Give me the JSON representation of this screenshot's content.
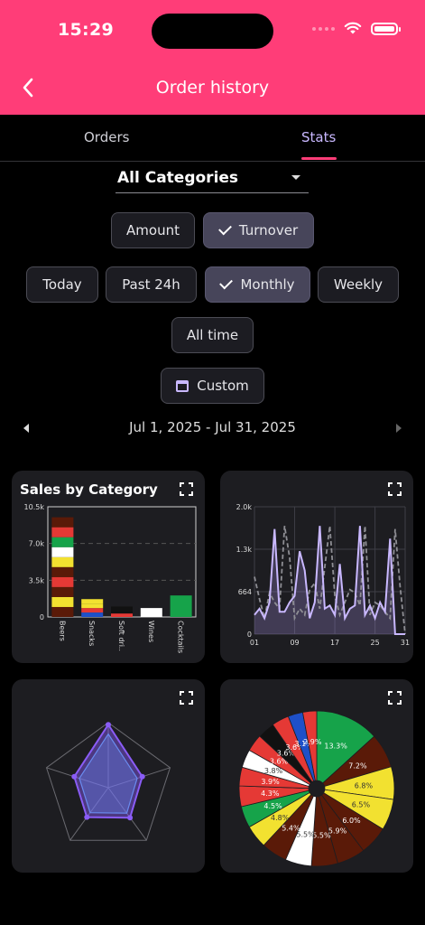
{
  "status_bar": {
    "time": "15:29"
  },
  "header": {
    "title": "Order history",
    "back_icon": "chevron-left-icon"
  },
  "tabs": [
    {
      "label": "Orders",
      "active": false
    },
    {
      "label": "Stats",
      "active": true
    }
  ],
  "category_dropdown": {
    "selected": "All Categories"
  },
  "metric_toggle": [
    {
      "label": "Amount",
      "selected": false
    },
    {
      "label": "Turnover",
      "selected": true
    }
  ],
  "period_toggle": [
    {
      "label": "Today",
      "selected": false
    },
    {
      "label": "Past 24h",
      "selected": false
    },
    {
      "label": "Monthly",
      "selected": true
    },
    {
      "label": "Weekly",
      "selected": false
    },
    {
      "label": "All time",
      "selected": false
    }
  ],
  "custom_button": {
    "label": "Custom"
  },
  "date_range": {
    "label": "Jul 1, 2025 - Jul 31, 2025"
  },
  "colors": {
    "accent": "#ff3d78",
    "stats_tab": "#c9b8ff",
    "line_main": "#c9b8ff",
    "radar": "#8a5cf6"
  },
  "chart_data": [
    {
      "type": "bar",
      "title": "Sales by Category",
      "categories": [
        "Beers",
        "Snacks",
        "Soft dri..",
        "Wines",
        "Cocktails"
      ],
      "values": [
        9500,
        1700,
        1000,
        850,
        2050
      ],
      "y_ticks": [
        "10.5k",
        "7.0k",
        "3.5k",
        "0"
      ],
      "ylim": [
        0,
        10500
      ]
    },
    {
      "type": "line",
      "x_ticks": [
        "01",
        "09",
        "17",
        "25",
        "31"
      ],
      "y_ticks": [
        "2.0k",
        "1.3k",
        "664",
        "0"
      ],
      "ylim": [
        0,
        2000
      ],
      "series": [
        {
          "values": [
            300,
            400,
            250,
            500,
            1650,
            350,
            350,
            500,
            600,
            1300,
            1000,
            250,
            500,
            1700,
            400,
            450,
            300,
            1100,
            250,
            400,
            450,
            1700,
            300,
            450,
            250,
            500,
            350,
            1500,
            0,
            0,
            0
          ]
        },
        {
          "values": [
            900,
            550,
            250,
            650,
            500,
            400,
            1700,
            1200,
            250,
            400,
            300,
            700,
            800,
            400,
            1050,
            1700,
            600,
            300,
            500,
            700,
            650,
            450,
            1700,
            300,
            500,
            450,
            350,
            250,
            1650,
            750,
            0
          ]
        }
      ]
    },
    {
      "type": "radar",
      "values": [
        0.97,
        0.55,
        0.57,
        0.56,
        0.55
      ]
    },
    {
      "type": "pie",
      "slices": [
        {
          "label": "13.3%",
          "value": 13.3,
          "color": "#16a34a"
        },
        {
          "label": "7.2%",
          "value": 7.2,
          "color": "#5a1a08"
        },
        {
          "label": "6.8%",
          "value": 6.8,
          "color": "#f2e130"
        },
        {
          "label": "6.5%",
          "value": 6.5,
          "color": "#f2e130"
        },
        {
          "label": "6.0%",
          "value": 6.0,
          "color": "#5a1a08"
        },
        {
          "label": "5.9%",
          "value": 5.9,
          "color": "#5a1a08"
        },
        {
          "label": "5.5%",
          "value": 5.5,
          "color": "#5a1a08"
        },
        {
          "label": "5.5%",
          "value": 5.5,
          "color": "#ffffff"
        },
        {
          "label": "5.4%",
          "value": 5.4,
          "color": "#5a1a08"
        },
        {
          "label": "4.8%",
          "value": 4.8,
          "color": "#f2e130"
        },
        {
          "label": "4.5%",
          "value": 4.5,
          "color": "#16a34a"
        },
        {
          "label": "4.3%",
          "value": 4.3,
          "color": "#e53935"
        },
        {
          "label": "3.9%",
          "value": 3.9,
          "color": "#e53935"
        },
        {
          "label": "3.8%",
          "value": 3.8,
          "color": "#ffffff"
        },
        {
          "label": "3.6%",
          "value": 3.6,
          "color": "#e53935"
        },
        {
          "label": "3.6%",
          "value": 3.6,
          "color": "#111111"
        },
        {
          "label": "3.6%",
          "value": 3.6,
          "color": "#e53935"
        },
        {
          "label": "3.1%",
          "value": 3.1,
          "color": "#1e50c8"
        },
        {
          "label": "2.9%",
          "value": 2.9,
          "color": "#e53935"
        }
      ]
    }
  ]
}
